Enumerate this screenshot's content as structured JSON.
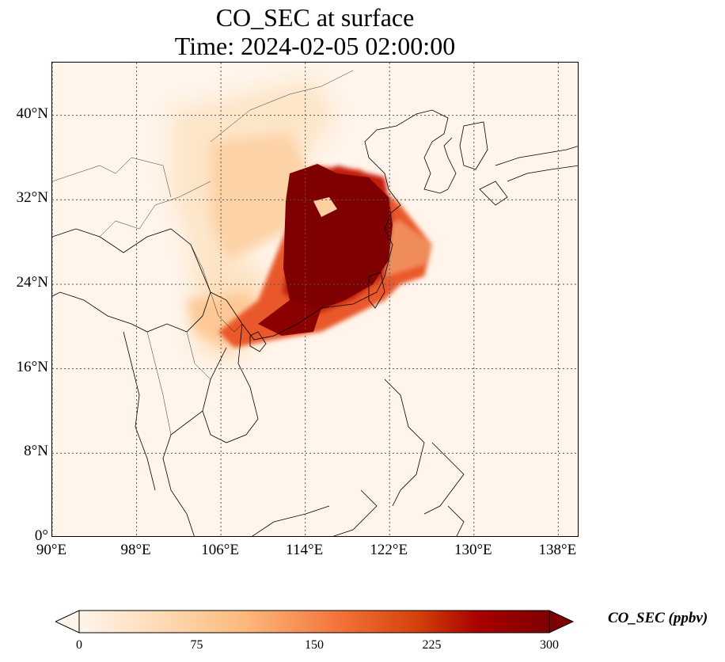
{
  "title": {
    "line1": "CO_SEC at surface",
    "line2": "Time: 2024-02-05 02:00:00"
  },
  "map": {
    "projection": "PlateCarree",
    "lon_range": [
      90,
      140
    ],
    "lat_range": [
      0,
      45
    ],
    "gridlines": "dotted",
    "lat_ticks": [
      {
        "value": 0,
        "label": "0°"
      },
      {
        "value": 8,
        "label": "8°N"
      },
      {
        "value": 16,
        "label": "16°N"
      },
      {
        "value": 24,
        "label": "24°N"
      },
      {
        "value": 32,
        "label": "32°N"
      },
      {
        "value": 40,
        "label": "40°N"
      }
    ],
    "lon_ticks": [
      {
        "value": 90,
        "label": "90°E"
      },
      {
        "value": 98,
        "label": "98°E"
      },
      {
        "value": 106,
        "label": "106°E"
      },
      {
        "value": 114,
        "label": "114°E"
      },
      {
        "value": 122,
        "label": "122°E"
      },
      {
        "value": 130,
        "label": "130°E"
      },
      {
        "value": 138,
        "label": "138°E"
      }
    ]
  },
  "colorbar": {
    "label": "CO_SEC (ppbv)",
    "colormap": "OrRd",
    "range": [
      0,
      300
    ],
    "extend": "both",
    "ticks": [
      {
        "value": 0,
        "label": "0"
      },
      {
        "value": 75,
        "label": "75"
      },
      {
        "value": 150,
        "label": "150"
      },
      {
        "value": 225,
        "label": "225"
      },
      {
        "value": 300,
        "label": "300"
      }
    ],
    "colors": [
      "#fff5eb",
      "#fdd6ad",
      "#fdb97d",
      "#f3743a",
      "#d3410a",
      "#a80000",
      "#7f0000"
    ]
  }
}
